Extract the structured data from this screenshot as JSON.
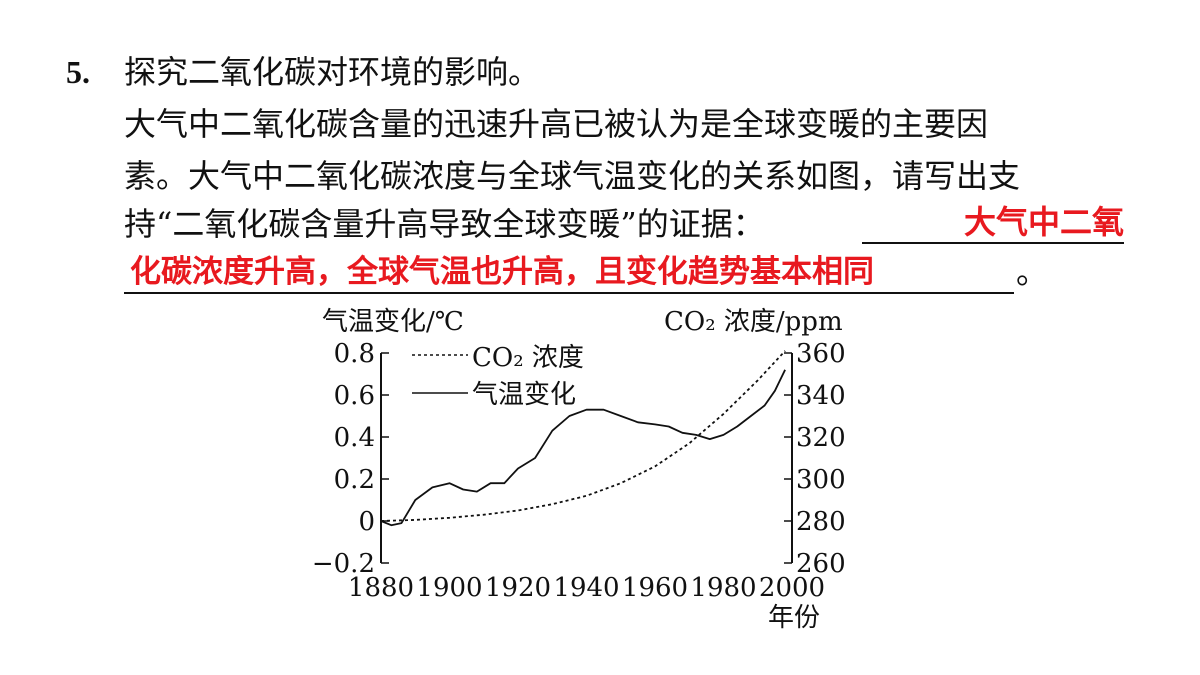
{
  "question": {
    "number": "5.",
    "title": "探究二氧化碳对环境的影响。",
    "body_line1": "大气中二氧化碳含量的迅速升高已被认为是全球变暖的主要因",
    "body_line2": "素。大气中二氧化碳浓度与全球气温变化的关系如图，请写出支",
    "body_line3": "持“二氧化碳含量升高导致全球变暖”的证据：",
    "answer_part1": "大气中二氧",
    "answer_part2": "化碳浓度升高，全球气温也升高，且变化趋势基本相同",
    "end_mark": "。",
    "answer_color": "#e8191f"
  },
  "chart_data": {
    "type": "line",
    "left_axis_label": "气温变化/℃",
    "right_axis_label": "CO₂ 浓度/ppm",
    "x_axis_label": "年份",
    "x_ticks": [
      "1880",
      "1900",
      "1920",
      "1940",
      "1960",
      "1980",
      "2000"
    ],
    "y_left_ticks": [
      "0.8",
      "0.6",
      "0.4",
      "0.2",
      "0",
      "−0.2"
    ],
    "y_right_ticks": [
      "360",
      "340",
      "320",
      "300",
      "280",
      "260"
    ],
    "xlim": [
      1880,
      2000
    ],
    "ylim_left": [
      -0.2,
      0.8
    ],
    "ylim_right": [
      260,
      360
    ],
    "legend": [
      {
        "label": "CO₂ 浓度",
        "style": "dashed"
      },
      {
        "label": "气温变化",
        "style": "solid"
      }
    ],
    "series": [
      {
        "name": "CO₂ 浓度",
        "axis": "right",
        "x": [
          1880,
          1890,
          1900,
          1910,
          1920,
          1930,
          1940,
          1950,
          1960,
          1970,
          1980,
          1990,
          1998
        ],
        "values": [
          280,
          280.5,
          281.5,
          283,
          285,
          288,
          292,
          298,
          306,
          317,
          331,
          347,
          361
        ]
      },
      {
        "name": "气温变化",
        "axis": "left",
        "x": [
          1880,
          1883,
          1886,
          1890,
          1895,
          1900,
          1904,
          1908,
          1912,
          1916,
          1920,
          1925,
          1930,
          1935,
          1940,
          1945,
          1950,
          1955,
          1960,
          1964,
          1968,
          1972,
          1976,
          1980,
          1984,
          1988,
          1992,
          1995,
          1998
        ],
        "values": [
          0.0,
          -0.02,
          -0.01,
          0.1,
          0.16,
          0.18,
          0.15,
          0.14,
          0.18,
          0.18,
          0.25,
          0.3,
          0.43,
          0.5,
          0.53,
          0.53,
          0.5,
          0.47,
          0.46,
          0.45,
          0.42,
          0.41,
          0.39,
          0.41,
          0.45,
          0.5,
          0.55,
          0.62,
          0.72
        ]
      }
    ]
  }
}
